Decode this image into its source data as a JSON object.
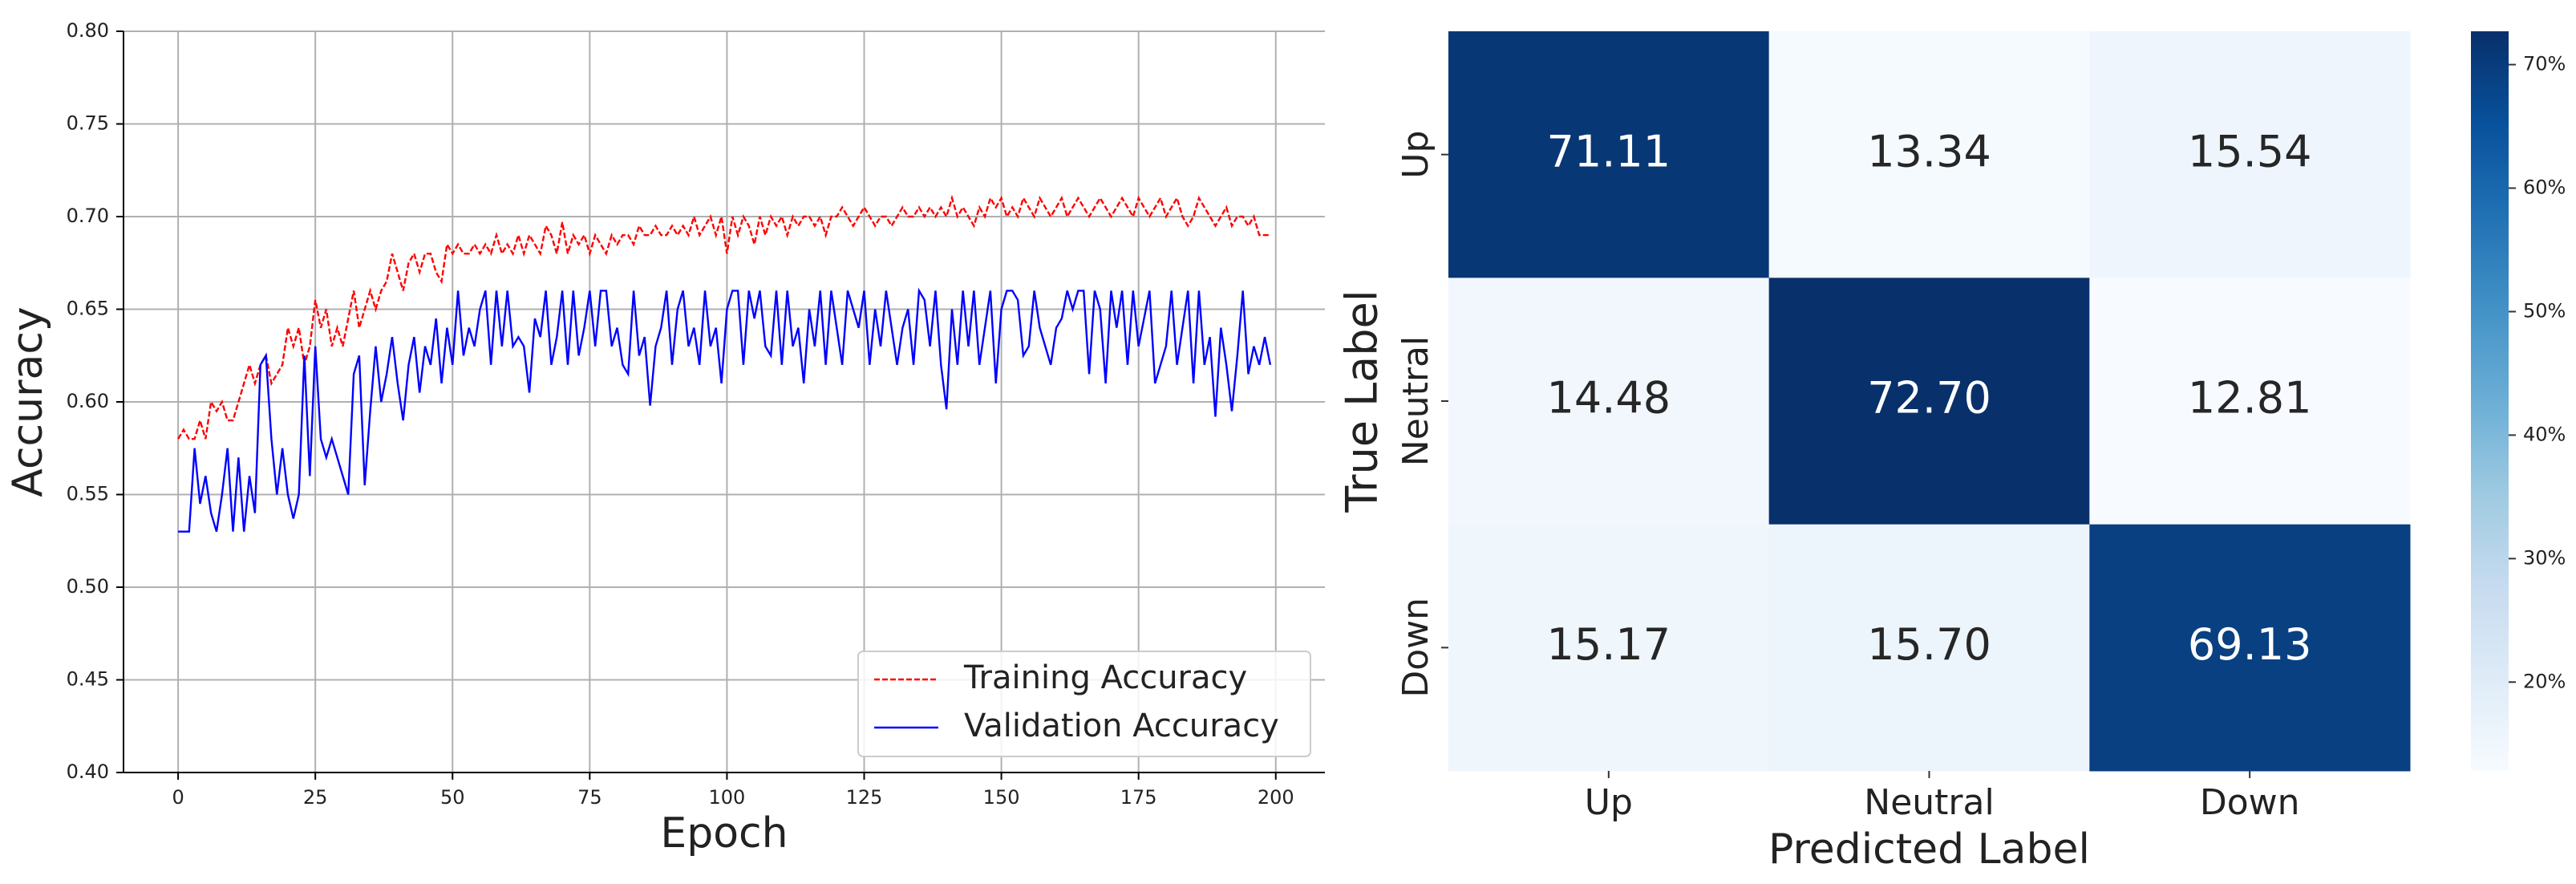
{
  "chart_data": [
    {
      "type": "line",
      "xlabel": "Epoch",
      "ylabel": "Accuracy",
      "x": [
        0,
        1,
        2,
        3,
        4,
        5,
        6,
        7,
        8,
        9,
        10,
        11,
        12,
        13,
        14,
        15,
        16,
        17,
        18,
        19,
        20,
        21,
        22,
        23,
        24,
        25,
        26,
        27,
        28,
        29,
        30,
        31,
        32,
        33,
        34,
        35,
        36,
        37,
        38,
        39,
        40,
        41,
        42,
        43,
        44,
        45,
        46,
        47,
        48,
        49,
        50,
        51,
        52,
        53,
        54,
        55,
        56,
        57,
        58,
        59,
        60,
        61,
        62,
        63,
        64,
        65,
        66,
        67,
        68,
        69,
        70,
        71,
        72,
        73,
        74,
        75,
        76,
        77,
        78,
        79,
        80,
        81,
        82,
        83,
        84,
        85,
        86,
        87,
        88,
        89,
        90,
        91,
        92,
        93,
        94,
        95,
        96,
        97,
        98,
        99,
        100,
        101,
        102,
        103,
        104,
        105,
        106,
        107,
        108,
        109,
        110,
        111,
        112,
        113,
        114,
        115,
        116,
        117,
        118,
        119,
        120,
        121,
        122,
        123,
        124,
        125,
        126,
        127,
        128,
        129,
        130,
        131,
        132,
        133,
        134,
        135,
        136,
        137,
        138,
        139,
        140,
        141,
        142,
        143,
        144,
        145,
        146,
        147,
        148,
        149,
        150,
        151,
        152,
        153,
        154,
        155,
        156,
        157,
        158,
        159,
        160,
        161,
        162,
        163,
        164,
        165,
        166,
        167,
        168,
        169,
        170,
        171,
        172,
        173,
        174,
        175,
        176,
        177,
        178,
        179,
        180,
        181,
        182,
        183,
        184,
        185,
        186,
        187,
        188,
        189,
        190,
        191,
        192,
        193,
        194,
        195,
        196,
        197,
        198,
        199
      ],
      "series": [
        {
          "name": "Training Accuracy",
          "color": "#ff0000",
          "linestyle": "dashed",
          "values": [
            0.58,
            0.585,
            0.58,
            0.58,
            0.59,
            0.58,
            0.6,
            0.595,
            0.6,
            0.59,
            0.59,
            0.6,
            0.61,
            0.62,
            0.61,
            0.62,
            0.625,
            0.61,
            0.615,
            0.62,
            0.64,
            0.63,
            0.64,
            0.62,
            0.63,
            0.655,
            0.64,
            0.65,
            0.63,
            0.64,
            0.63,
            0.645,
            0.66,
            0.64,
            0.65,
            0.66,
            0.65,
            0.66,
            0.665,
            0.68,
            0.67,
            0.66,
            0.675,
            0.68,
            0.67,
            0.68,
            0.68,
            0.67,
            0.665,
            0.685,
            0.68,
            0.685,
            0.68,
            0.68,
            0.685,
            0.68,
            0.685,
            0.68,
            0.69,
            0.68,
            0.685,
            0.68,
            0.69,
            0.68,
            0.69,
            0.685,
            0.68,
            0.695,
            0.69,
            0.68,
            0.697,
            0.68,
            0.69,
            0.685,
            0.69,
            0.68,
            0.69,
            0.685,
            0.68,
            0.69,
            0.685,
            0.69,
            0.69,
            0.685,
            0.695,
            0.69,
            0.69,
            0.695,
            0.69,
            0.69,
            0.695,
            0.69,
            0.695,
            0.69,
            0.7,
            0.69,
            0.695,
            0.7,
            0.69,
            0.7,
            0.68,
            0.7,
            0.69,
            0.7,
            0.695,
            0.685,
            0.7,
            0.69,
            0.7,
            0.695,
            0.7,
            0.69,
            0.7,
            0.695,
            0.7,
            0.7,
            0.695,
            0.7,
            0.69,
            0.7,
            0.7,
            0.705,
            0.7,
            0.695,
            0.7,
            0.705,
            0.7,
            0.695,
            0.7,
            0.7,
            0.695,
            0.7,
            0.705,
            0.7,
            0.7,
            0.705,
            0.7,
            0.705,
            0.7,
            0.705,
            0.7,
            0.71,
            0.7,
            0.705,
            0.7,
            0.695,
            0.705,
            0.7,
            0.71,
            0.705,
            0.71,
            0.7,
            0.705,
            0.7,
            0.71,
            0.705,
            0.7,
            0.71,
            0.705,
            0.7,
            0.705,
            0.71,
            0.7,
            0.705,
            0.71,
            0.705,
            0.7,
            0.705,
            0.71,
            0.705,
            0.7,
            0.705,
            0.71,
            0.705,
            0.7,
            0.71,
            0.705,
            0.7,
            0.705,
            0.71,
            0.7,
            0.705,
            0.71,
            0.7,
            0.695,
            0.7,
            0.71,
            0.705,
            0.7,
            0.695,
            0.7,
            0.705,
            0.695,
            0.7,
            0.7,
            0.695,
            0.7,
            0.69,
            0.69,
            0.69
          ]
        },
        {
          "name": "Validation Accuracy",
          "color": "#0000ff",
          "linestyle": "solid",
          "values": [
            0.53,
            0.53,
            0.53,
            0.575,
            0.545,
            0.56,
            0.54,
            0.53,
            0.55,
            0.575,
            0.53,
            0.57,
            0.53,
            0.56,
            0.54,
            0.62,
            0.625,
            0.58,
            0.55,
            0.575,
            0.55,
            0.537,
            0.55,
            0.625,
            0.56,
            0.63,
            0.58,
            0.57,
            0.58,
            0.57,
            0.56,
            0.55,
            0.615,
            0.625,
            0.555,
            0.595,
            0.63,
            0.6,
            0.615,
            0.635,
            0.61,
            0.59,
            0.62,
            0.635,
            0.605,
            0.63,
            0.62,
            0.645,
            0.61,
            0.64,
            0.62,
            0.66,
            0.625,
            0.64,
            0.63,
            0.65,
            0.66,
            0.62,
            0.66,
            0.63,
            0.66,
            0.63,
            0.635,
            0.63,
            0.605,
            0.645,
            0.635,
            0.66,
            0.62,
            0.635,
            0.66,
            0.62,
            0.66,
            0.625,
            0.64,
            0.66,
            0.63,
            0.66,
            0.66,
            0.63,
            0.64,
            0.62,
            0.615,
            0.66,
            0.625,
            0.635,
            0.598,
            0.63,
            0.64,
            0.66,
            0.62,
            0.65,
            0.66,
            0.63,
            0.64,
            0.62,
            0.66,
            0.63,
            0.64,
            0.61,
            0.65,
            0.66,
            0.66,
            0.62,
            0.66,
            0.645,
            0.66,
            0.63,
            0.625,
            0.66,
            0.62,
            0.66,
            0.63,
            0.64,
            0.61,
            0.65,
            0.63,
            0.66,
            0.62,
            0.66,
            0.64,
            0.62,
            0.66,
            0.65,
            0.64,
            0.66,
            0.62,
            0.65,
            0.63,
            0.66,
            0.64,
            0.62,
            0.64,
            0.65,
            0.62,
            0.66,
            0.655,
            0.63,
            0.66,
            0.62,
            0.596,
            0.65,
            0.62,
            0.66,
            0.63,
            0.66,
            0.62,
            0.64,
            0.66,
            0.61,
            0.65,
            0.66,
            0.66,
            0.655,
            0.625,
            0.63,
            0.66,
            0.64,
            0.63,
            0.62,
            0.64,
            0.645,
            0.66,
            0.65,
            0.66,
            0.66,
            0.615,
            0.66,
            0.65,
            0.61,
            0.66,
            0.64,
            0.66,
            0.62,
            0.66,
            0.63,
            0.645,
            0.66,
            0.61,
            0.62,
            0.63,
            0.66,
            0.62,
            0.64,
            0.66,
            0.61,
            0.66,
            0.62,
            0.635,
            0.592,
            0.64,
            0.62,
            0.595,
            0.625,
            0.66,
            0.615,
            0.63,
            0.62,
            0.635,
            0.62
          ]
        }
      ],
      "xlim": [
        -9.95,
        208.95
      ],
      "xticks": [
        0,
        25,
        50,
        75,
        100,
        125,
        150,
        175,
        200
      ],
      "ylim": [
        0.4,
        0.8
      ],
      "yticks": [
        {
          "value": 0.4,
          "label": "0.40"
        },
        {
          "value": 0.45,
          "label": "0.45"
        },
        {
          "value": 0.5,
          "label": "0.50"
        },
        {
          "value": 0.55,
          "label": "0.55"
        },
        {
          "value": 0.6,
          "label": "0.60"
        },
        {
          "value": 0.65,
          "label": "0.65"
        },
        {
          "value": 0.7,
          "label": "0.70"
        },
        {
          "value": 0.75,
          "label": "0.75"
        },
        {
          "value": 0.8,
          "label": "0.80"
        }
      ],
      "grid": true,
      "legend": "lower right"
    },
    {
      "type": "heatmap",
      "xlabel": "Predicted Label",
      "ylabel": "True Label",
      "columns": [
        "Up",
        "Neutral",
        "Down"
      ],
      "rows": [
        "Up",
        "Neutral",
        "Down"
      ],
      "values": [
        [
          71.11,
          13.34,
          15.54
        ],
        [
          14.48,
          72.7,
          12.81
        ],
        [
          15.17,
          15.7,
          69.13
        ]
      ],
      "value_labels": [
        [
          "71.11",
          "13.34",
          "15.54"
        ],
        [
          "14.48",
          "72.70",
          "12.81"
        ],
        [
          "15.17",
          "15.70",
          "69.13"
        ]
      ],
      "colors": [
        "#f7fbff",
        "#deebf7",
        "#c6dbef",
        "#9ecae1",
        "#6baed6",
        "#4292c6",
        "#2171b5",
        "#08519c",
        "#08306b"
      ],
      "clim": [
        12.81,
        72.7
      ],
      "cticks": [
        {
          "value": 20,
          "label": "20%"
        },
        {
          "value": 30,
          "label": "30%"
        },
        {
          "value": 40,
          "label": "40%"
        },
        {
          "value": 50,
          "label": "50%"
        },
        {
          "value": 60,
          "label": "60%"
        },
        {
          "value": 70,
          "label": "70%"
        }
      ]
    }
  ]
}
